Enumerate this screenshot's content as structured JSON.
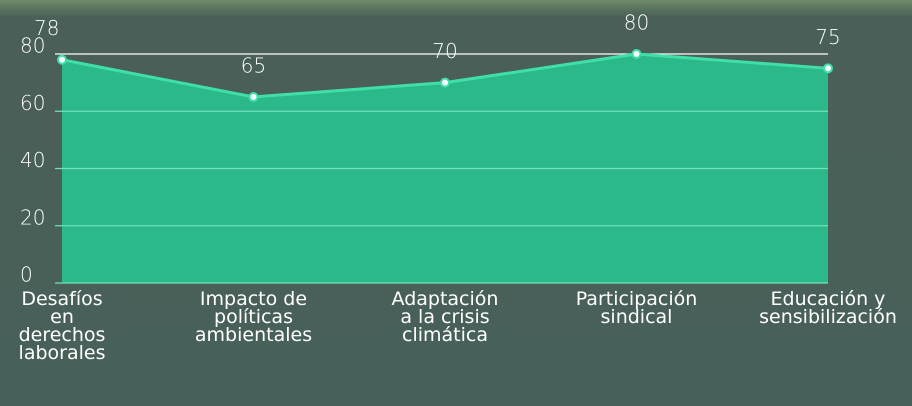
{
  "chart_data": {
    "type": "area",
    "categories": [
      "Desafíos en derechos laborales",
      "Impacto de políticas ambientales",
      "Adaptación a la crisis climática",
      "Participación sindical",
      "Educación y sensibilización"
    ],
    "values": [
      78,
      65,
      70,
      80,
      75
    ],
    "color": "#2bb88a",
    "line_color": "#3fe0a8",
    "ylim": [
      0,
      80
    ],
    "yticks": [
      0,
      20,
      40,
      60,
      80
    ],
    "grid": true
  }
}
